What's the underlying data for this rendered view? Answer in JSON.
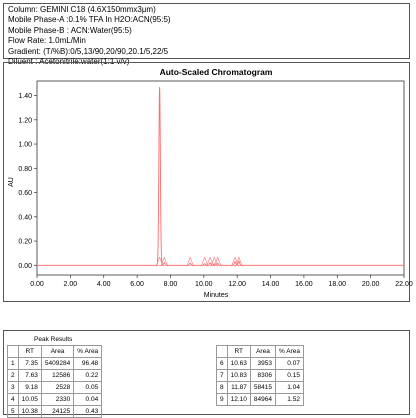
{
  "method_info": {
    "lines": [
      "Column: GEMINI C18 (4.6X150mmx3μm)",
      "Mobile Phase-A :0.1% TFA In H2O:ACN(95:5)",
      "Mobile Phase-B : ACN:Water(95:5)",
      "Flow Rate: 1.0mL/Min",
      "Gradient: (T/%B):0/5,13/90,20/90,20.1/5,22/5",
      "Diluent : Acetonitrile:water(1:1 v/v)"
    ]
  },
  "chart_data": {
    "type": "line",
    "title": "Auto-Scaled Chromatogram",
    "xlabel": "Minutes",
    "ylabel": "AU",
    "xlim": [
      0,
      22
    ],
    "ylim": [
      -0.08,
      1.52
    ],
    "x_ticks": [
      "0.00",
      "2.00",
      "4.00",
      "6.00",
      "8.00",
      "10.00",
      "12.00",
      "14.00",
      "16.00",
      "18.00",
      "20.00",
      "22.00"
    ],
    "y_ticks": [
      "0.00",
      "0.20",
      "0.40",
      "0.60",
      "0.80",
      "1.00",
      "1.20",
      "1.40"
    ],
    "series": [
      {
        "color": "#ff6b6b",
        "peaks": [
          {
            "rt": 7.35,
            "height": 1.47
          },
          {
            "rt": 7.63,
            "height": 0.022
          },
          {
            "rt": 9.18,
            "height": 0.018
          },
          {
            "rt": 10.05,
            "height": 0.012
          },
          {
            "rt": 10.38,
            "height": 0.02
          },
          {
            "rt": 10.63,
            "height": 0.012
          },
          {
            "rt": 10.83,
            "height": 0.016
          },
          {
            "rt": 11.87,
            "height": 0.03
          },
          {
            "rt": 12.1,
            "height": 0.035
          }
        ]
      }
    ]
  },
  "peak_results": {
    "title": "Peak Results",
    "headers": [
      "",
      "RT",
      "Area",
      "% Area"
    ],
    "rows": [
      [
        "1",
        "7.35",
        "5409284",
        "96.48"
      ],
      [
        "2",
        "7.63",
        "12586",
        "0.22"
      ],
      [
        "3",
        "9.18",
        "2528",
        "0.05"
      ],
      [
        "4",
        "10.05",
        "2330",
        "0.04"
      ],
      [
        "5",
        "10.38",
        "24125",
        "0.43"
      ],
      [
        "6",
        "10.63",
        "3953",
        "0.07"
      ],
      [
        "7",
        "10.83",
        "8306",
        "0.15"
      ],
      [
        "8",
        "11.87",
        "58415",
        "1.04"
      ],
      [
        "9",
        "12.10",
        "84964",
        "1.52"
      ]
    ]
  }
}
